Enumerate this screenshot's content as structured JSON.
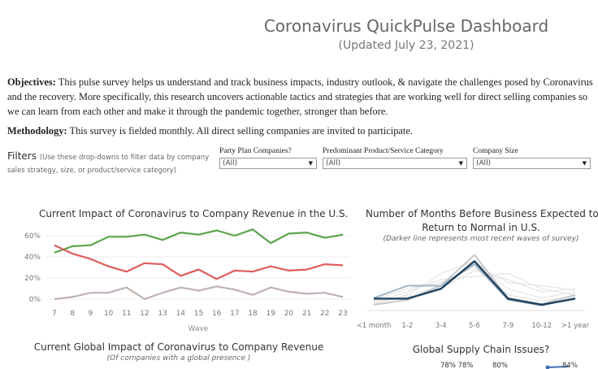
{
  "header": {
    "title": "Coronavirus QuickPulse Dashboard",
    "subtitle": "(Updated July 23, 2021)"
  },
  "intro": {
    "objectives_label": "Objectives:",
    "objectives_text": " This pulse survey helps us understand and track business impacts, industry outlook, & navigate the challenges posed by Coronavirus and the recovery. More specifically, this research uncovers actionable tactics and strategies that are working well for direct selling companies so we can learn from each other and make it through the pandemic together, stronger than before.",
    "methodology_label": "Methodology:",
    "methodology_text": " This survey is fielded monthly. All direct selling companies are invited to participate."
  },
  "filters": {
    "label": "Filters",
    "hint": "(Use these drop-downs to filter data by company sales strategy, size, or product/service category)",
    "dropdowns": [
      {
        "label": "Party Plan Companies?",
        "value": "(All)"
      },
      {
        "label": "Predominant Product/Service Category",
        "value": "(All)"
      },
      {
        "label": "Company Size",
        "value": "(All)"
      }
    ]
  },
  "chart1": {
    "title": "Current Impact of Coronavirus to Company Revenue in the U.S.",
    "x_label": "Wave",
    "y_ticks": [
      "60%",
      "40%",
      "20%",
      "0%"
    ],
    "x_ticks": [
      "7",
      "8",
      "9",
      "10",
      "11",
      "12",
      "13",
      "14",
      "15",
      "16",
      "17",
      "18",
      "19",
      "20",
      "21",
      "22",
      "23"
    ]
  },
  "chart2": {
    "title_line1": "Number of Months Before Business Expected to",
    "title_line2": "Return to Normal in U.S.",
    "note": "(Darker line represents most recent waves of survey)",
    "x_ticks": [
      "<1 month",
      "1-2",
      "3-4",
      "5-6",
      "7-9",
      "10-12",
      ">1 year"
    ]
  },
  "chart3": {
    "title": "Current Global Impact of Coronavirus to Company Revenue",
    "subtitle": "(Of companies with a global presence )"
  },
  "chart4": {
    "title": "Global Supply Chain Issues?",
    "labels": [
      "78% 78%",
      "80%",
      "84%"
    ]
  },
  "chart_data": [
    {
      "type": "line",
      "title": "Current Impact of Coronavirus to Company Revenue in the U.S.",
      "xlabel": "Wave",
      "ylabel": "",
      "ylim": [
        0,
        70
      ],
      "x": [
        7,
        8,
        9,
        10,
        11,
        12,
        13,
        14,
        15,
        16,
        17,
        18,
        19,
        20,
        21,
        22,
        23
      ],
      "series": [
        {
          "name": "green",
          "color": "#5ca44c",
          "values": [
            44,
            50,
            51,
            59,
            59,
            61,
            56,
            63,
            61,
            65,
            60,
            66,
            53,
            62,
            63,
            58,
            61
          ]
        },
        {
          "name": "red",
          "color": "#e05d5b",
          "values": [
            51,
            43,
            38,
            31,
            26,
            34,
            33,
            22,
            28,
            19,
            27,
            26,
            31,
            27,
            28,
            33,
            32
          ]
        },
        {
          "name": "gray",
          "color": "#bfb3ad",
          "values": [
            0,
            2,
            6,
            6,
            11,
            0,
            6,
            11,
            8,
            12,
            9,
            4,
            11,
            7,
            5,
            6,
            2
          ]
        }
      ]
    },
    {
      "type": "line",
      "title": "Number of Months Before Business Expected to Return to Normal in U.S.",
      "categories": [
        "<1 month",
        "1-2",
        "3-4",
        "5-6",
        "7-9",
        "10-12",
        ">1 year"
      ],
      "ylim": [
        0,
        100
      ],
      "series": [
        {
          "name": "background-1",
          "color": "#e4e4e4",
          "values": [
            10,
            15,
            30,
            60,
            45,
            25,
            30
          ]
        },
        {
          "name": "background-2",
          "color": "#e4e4e4",
          "values": [
            8,
            25,
            45,
            50,
            55,
            30,
            20
          ]
        },
        {
          "name": "background-3",
          "color": "#e4e4e4",
          "values": [
            5,
            20,
            55,
            75,
            30,
            15,
            25
          ]
        },
        {
          "name": "background-4",
          "color": "#e4e4e4",
          "values": [
            12,
            30,
            40,
            65,
            20,
            10,
            18
          ]
        },
        {
          "name": "background-5",
          "color": "#e4e4e4",
          "values": [
            6,
            18,
            35,
            70,
            40,
            35,
            28
          ]
        },
        {
          "name": "medium-gray",
          "color": "#c6c8cb",
          "values": [
            4,
            12,
            35,
            85,
            15,
            5,
            20
          ]
        },
        {
          "name": "light-blue",
          "color": "#9fb6c6",
          "values": [
            15,
            35,
            35,
            70,
            12,
            3,
            15
          ]
        },
        {
          "name": "recent",
          "color": "#22425f",
          "values": [
            14,
            14,
            30,
            75,
            14,
            4,
            14
          ]
        }
      ]
    }
  ]
}
